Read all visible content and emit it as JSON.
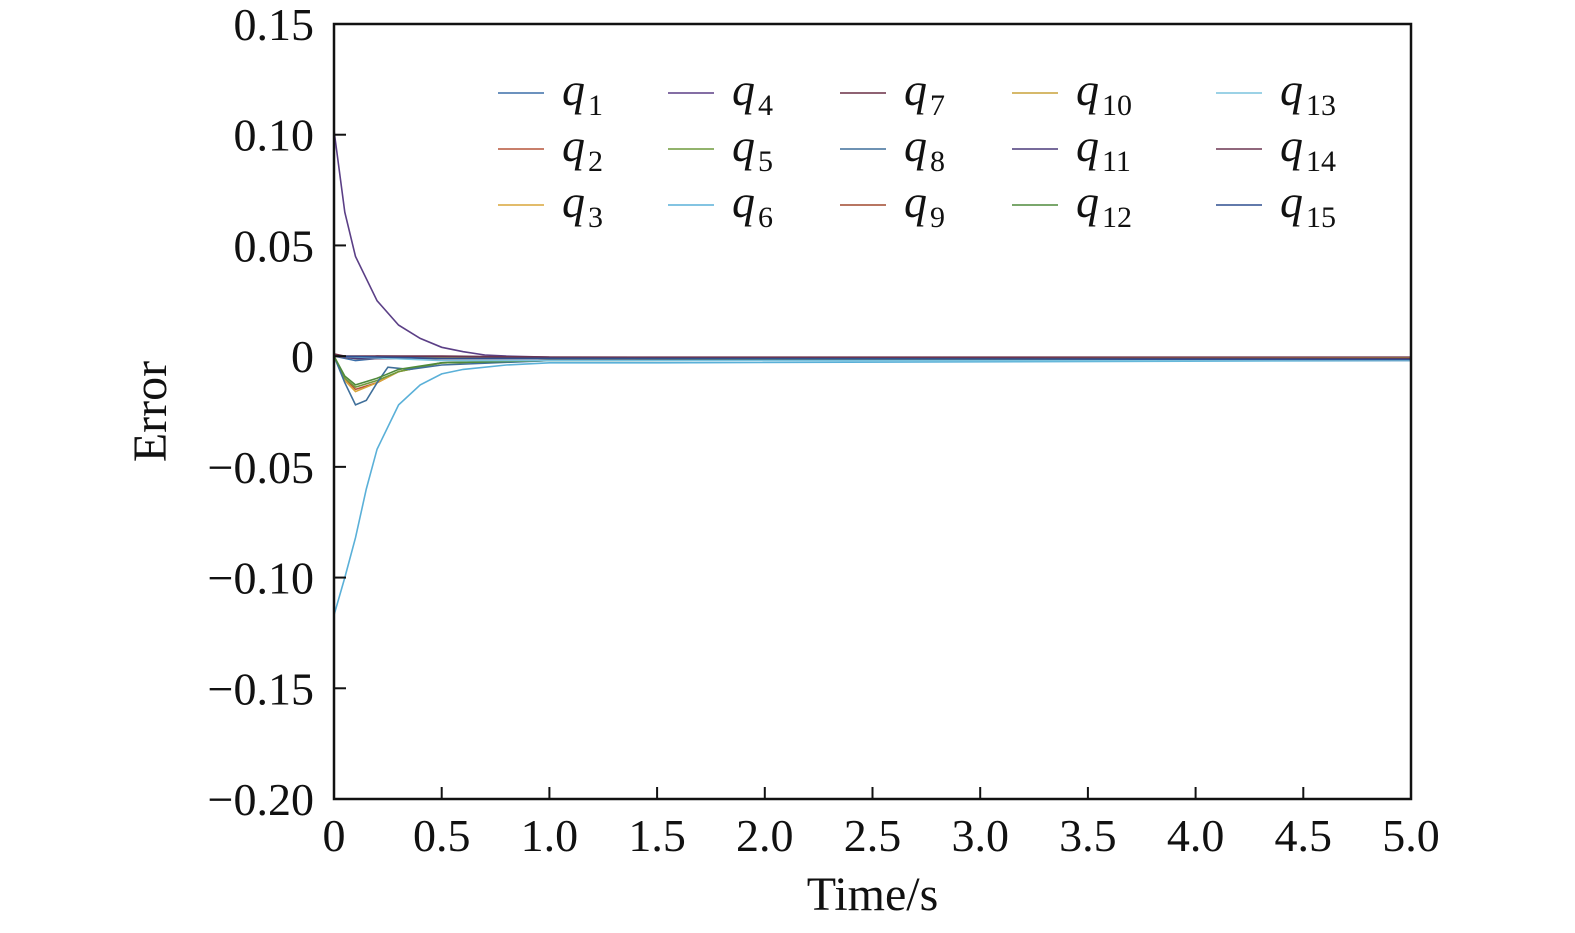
{
  "chart_data": {
    "type": "line",
    "title": "",
    "xlabel": "Time/s",
    "ylabel": "Error",
    "xlim": [
      0,
      5.0
    ],
    "ylim": [
      -0.2,
      0.15
    ],
    "grid": false,
    "legend_position": "top-right",
    "x_ticks": [
      0,
      0.5,
      1.0,
      1.5,
      2.0,
      2.5,
      3.0,
      3.5,
      4.0,
      4.5,
      5.0
    ],
    "x_tick_labels": [
      "0",
      "0.5",
      "1.0",
      "1.5",
      "2.0",
      "2.5",
      "3.0",
      "3.5",
      "4.0",
      "4.5",
      "5.0"
    ],
    "y_ticks": [
      0.15,
      0.1,
      0.05,
      0,
      -0.05,
      -0.1,
      -0.15,
      -0.2
    ],
    "y_tick_labels": [
      "0.15",
      "0.10",
      "0.05",
      "0",
      "−0.05",
      "−0.10",
      "−0.15",
      "−0.20"
    ],
    "series": [
      {
        "name": "q1",
        "symbol": "q",
        "subscript": "1",
        "color": "#3b6ea8",
        "x": [
          0,
          0.1,
          0.2,
          0.5,
          1.0,
          5.0
        ],
        "y": [
          0,
          -0.002,
          -0.001,
          -0.0005,
          -0.001,
          -0.001
        ]
      },
      {
        "name": "q2",
        "symbol": "q",
        "subscript": "2",
        "color": "#b5553a",
        "x": [
          0,
          0.05,
          0.1,
          0.2,
          0.3,
          0.5,
          1.0,
          5.0
        ],
        "y": [
          0,
          -0.01,
          -0.015,
          -0.012,
          -0.007,
          -0.003,
          -0.002,
          -0.001
        ]
      },
      {
        "name": "q3",
        "symbol": "q",
        "subscript": "3",
        "color": "#d9a53a",
        "x": [
          0,
          0.05,
          0.1,
          0.2,
          0.3,
          0.5,
          1.0,
          5.0
        ],
        "y": [
          0,
          -0.011,
          -0.016,
          -0.012,
          -0.007,
          -0.003,
          -0.002,
          -0.001
        ]
      },
      {
        "name": "q4",
        "symbol": "q",
        "subscript": "4",
        "color": "#5b3f86",
        "x": [
          0,
          0.05,
          0.1,
          0.2,
          0.3,
          0.4,
          0.5,
          0.6,
          0.7,
          0.8,
          1.0,
          5.0
        ],
        "y": [
          0.102,
          0.065,
          0.045,
          0.025,
          0.014,
          0.008,
          0.004,
          0.002,
          0.0005,
          0.0,
          -0.0005,
          -0.001
        ]
      },
      {
        "name": "q5",
        "symbol": "q",
        "subscript": "5",
        "color": "#6f9a3b",
        "x": [
          0,
          0.05,
          0.1,
          0.2,
          0.3,
          0.5,
          1.0,
          5.0
        ],
        "y": [
          0,
          -0.01,
          -0.014,
          -0.011,
          -0.007,
          -0.003,
          -0.002,
          -0.001
        ]
      },
      {
        "name": "q6",
        "symbol": "q",
        "subscript": "6",
        "color": "#5ab0d8",
        "x": [
          0,
          0.05,
          0.1,
          0.15,
          0.2,
          0.3,
          0.4,
          0.5,
          0.6,
          0.8,
          1.0,
          1.5,
          5.0
        ],
        "y": [
          -0.117,
          -0.1,
          -0.082,
          -0.06,
          -0.042,
          -0.022,
          -0.013,
          -0.008,
          -0.006,
          -0.004,
          -0.003,
          -0.003,
          -0.002
        ]
      },
      {
        "name": "q7",
        "symbol": "q",
        "subscript": "7",
        "color": "#6a2f45",
        "x": [
          0,
          0.1,
          0.2,
          1.0,
          5.0
        ],
        "y": [
          0.001,
          -0.001,
          0.0,
          -0.0005,
          -0.0005
        ]
      },
      {
        "name": "q8",
        "symbol": "q",
        "subscript": "8",
        "color": "#3f6f9a",
        "x": [
          0,
          0.05,
          0.1,
          0.15,
          0.2,
          0.25,
          0.35,
          0.5,
          1.0,
          5.0
        ],
        "y": [
          0,
          -0.012,
          -0.022,
          -0.02,
          -0.012,
          -0.005,
          -0.006,
          -0.004,
          -0.002,
          -0.001
        ]
      },
      {
        "name": "q9",
        "symbol": "q",
        "subscript": "9",
        "color": "#a0482e",
        "x": [
          0,
          0.1,
          0.3,
          1.0,
          5.0
        ],
        "y": [
          0,
          -0.001,
          -0.001,
          -0.001,
          -0.001
        ]
      },
      {
        "name": "q10",
        "symbol": "q",
        "subscript": "10",
        "color": "#c9a23a",
        "x": [
          0,
          0.1,
          0.3,
          1.0,
          5.0
        ],
        "y": [
          0,
          -0.001,
          -0.0008,
          -0.0008,
          -0.0008
        ]
      },
      {
        "name": "q11",
        "symbol": "q",
        "subscript": "11",
        "color": "#4a3a7a",
        "x": [
          0,
          0.1,
          0.5,
          1.0,
          5.0
        ],
        "y": [
          0,
          -0.001,
          -0.001,
          -0.001,
          -0.002
        ]
      },
      {
        "name": "q12",
        "symbol": "q",
        "subscript": "12",
        "color": "#4f8a3b",
        "x": [
          0,
          0.05,
          0.1,
          0.2,
          0.3,
          0.5,
          1.0,
          5.0
        ],
        "y": [
          0,
          -0.009,
          -0.013,
          -0.01,
          -0.006,
          -0.003,
          -0.002,
          -0.001
        ]
      },
      {
        "name": "q13",
        "symbol": "q",
        "subscript": "13",
        "color": "#7cc3de",
        "x": [
          0,
          0.5,
          1.0,
          5.0
        ],
        "y": [
          0,
          -0.002,
          -0.002,
          -0.002
        ]
      },
      {
        "name": "q14",
        "symbol": "q",
        "subscript": "14",
        "color": "#6b3550",
        "x": [
          0,
          0.5,
          1.0,
          5.0
        ],
        "y": [
          0,
          0.0,
          -0.0005,
          -0.001
        ]
      },
      {
        "name": "q15",
        "symbol": "q",
        "subscript": "15",
        "color": "#2f4f8f",
        "x": [
          0,
          0.5,
          1.0,
          5.0
        ],
        "y": [
          0,
          -0.001,
          -0.001,
          -0.0015
        ]
      }
    ]
  }
}
